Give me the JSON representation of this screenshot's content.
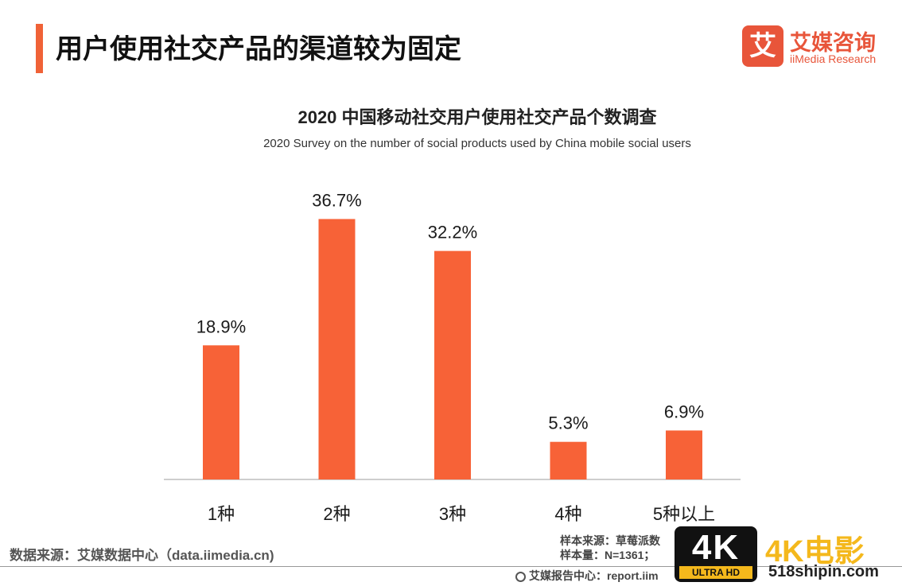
{
  "header": {
    "title": "用户使用社交产品的渠道较为固定"
  },
  "logo": {
    "mark": "艾",
    "name_cn": "艾媒咨询",
    "name_en": "iiMedia Research"
  },
  "chart_data": {
    "type": "bar",
    "title": "2020 中国移动社交用户使用社交产品个数调查",
    "subtitle": "2020 Survey on the number of social products used by China mobile social users",
    "categories": [
      "1种",
      "2种",
      "3种",
      "4种",
      "5种以上"
    ],
    "values": [
      18.9,
      36.7,
      32.2,
      5.3,
      6.9
    ],
    "data_labels": [
      "18.9%",
      "36.7%",
      "32.2%",
      "5.3%",
      "6.9%"
    ],
    "unit": "%",
    "ylim": [
      0,
      40
    ],
    "grid": false,
    "bar_color": "#f76237"
  },
  "footer": {
    "data_source": "数据来源：艾媒数据中心（data.iimedia.cn)",
    "sample_source": "样本来源：草莓派数",
    "sample_size": "样本量：N=1361；",
    "report_center": "艾媒报告中心：report.iim"
  },
  "watermark": {
    "badge_main": "4K",
    "badge_sub": "ULTRA HD",
    "text": "4K电影",
    "url": "518shipin.com"
  },
  "colors": {
    "accent": "#f06237",
    "logo": "#e8553a",
    "watermark": "#f4b81c"
  }
}
